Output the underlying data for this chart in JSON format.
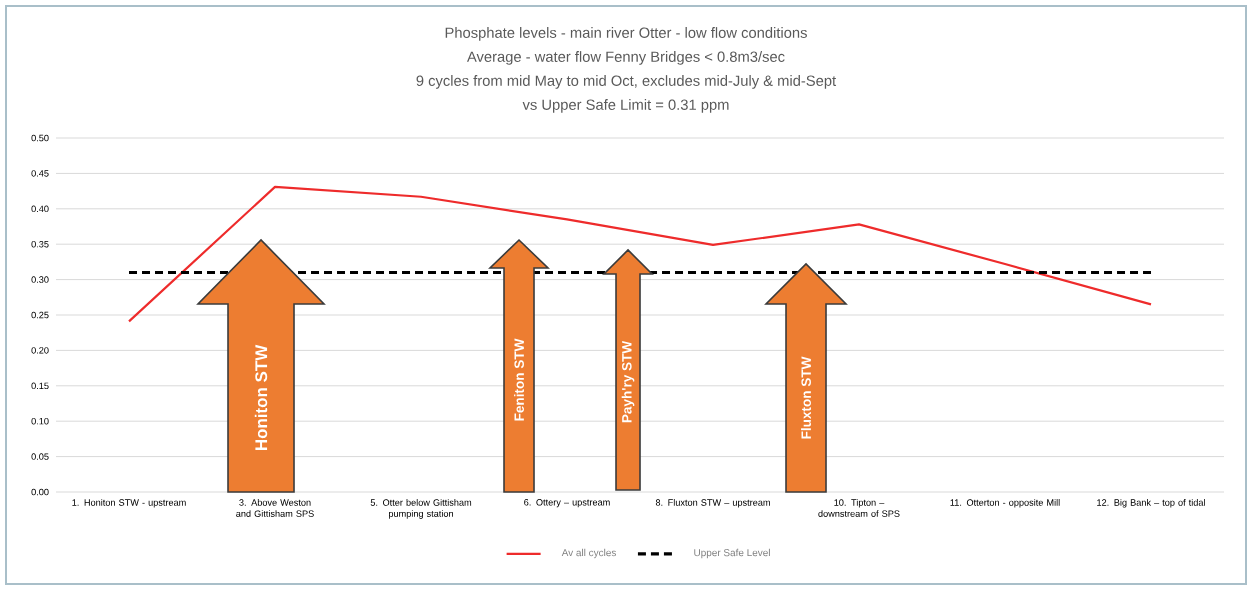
{
  "chart_data": {
    "type": "line",
    "title": "Phosphate levels - main river Otter - low flow conditions",
    "subtitle": "Average - water flow Fenny Bridges < 0.8m3/sec",
    "annotations": [
      "9 cycles from mid May to mid Oct, excludes mid-July & mid-Sept",
      "vs Upper Safe Limit = 0.31 ppm",
      "Honiton STW",
      "Feniton STW",
      "Payh'ry STW",
      "Fluxton STW"
    ],
    "categories": [
      "1. Honiton STW - upstream",
      "3. Above Weston and Gittisham SPS",
      "5. Otter below Gittisham pumping station",
      "6. Ottery – upstream",
      "8. Fluxton STW – upstream",
      "10. Tipton – downstream of SPS",
      "11. Otterton - opposite Mill",
      "12. Big Bank – top of tidal"
    ],
    "series": [
      {
        "name": "Av all cycles",
        "color": "#ee2b2b",
        "line_style": "solid",
        "values": [
          0.241,
          0.431,
          0.417,
          0.385,
          0.349,
          0.378,
          0.322,
          0.265
        ]
      },
      {
        "name": "Upper Safe Level",
        "color": "#000000",
        "line_style": "dashed",
        "values": [
          0.31,
          null,
          0.31,
          0.31,
          0.31,
          0.31,
          0.31,
          0.31
        ]
      }
    ],
    "ylim": [
      0,
      0.5
    ],
    "yticks": [
      {
        "value": 0,
        "label": "0.00"
      },
      {
        "value": 0.05,
        "label": "0.05"
      },
      {
        "value": 0.1,
        "label": "0.10"
      },
      {
        "value": 0.15,
        "label": "0.15"
      },
      {
        "value": 0.2,
        "label": "0.20"
      },
      {
        "value": 0.25,
        "label": "0.25"
      },
      {
        "value": 0.3,
        "label": "0.30"
      },
      {
        "value": 0.35,
        "label": "0.35"
      },
      {
        "value": 0.4,
        "label": "0.40"
      },
      {
        "value": 0.45,
        "label": "0.45"
      },
      {
        "value": 0.5,
        "label": "0.50"
      }
    ],
    "grid": "y",
    "legend": "bottom"
  }
}
